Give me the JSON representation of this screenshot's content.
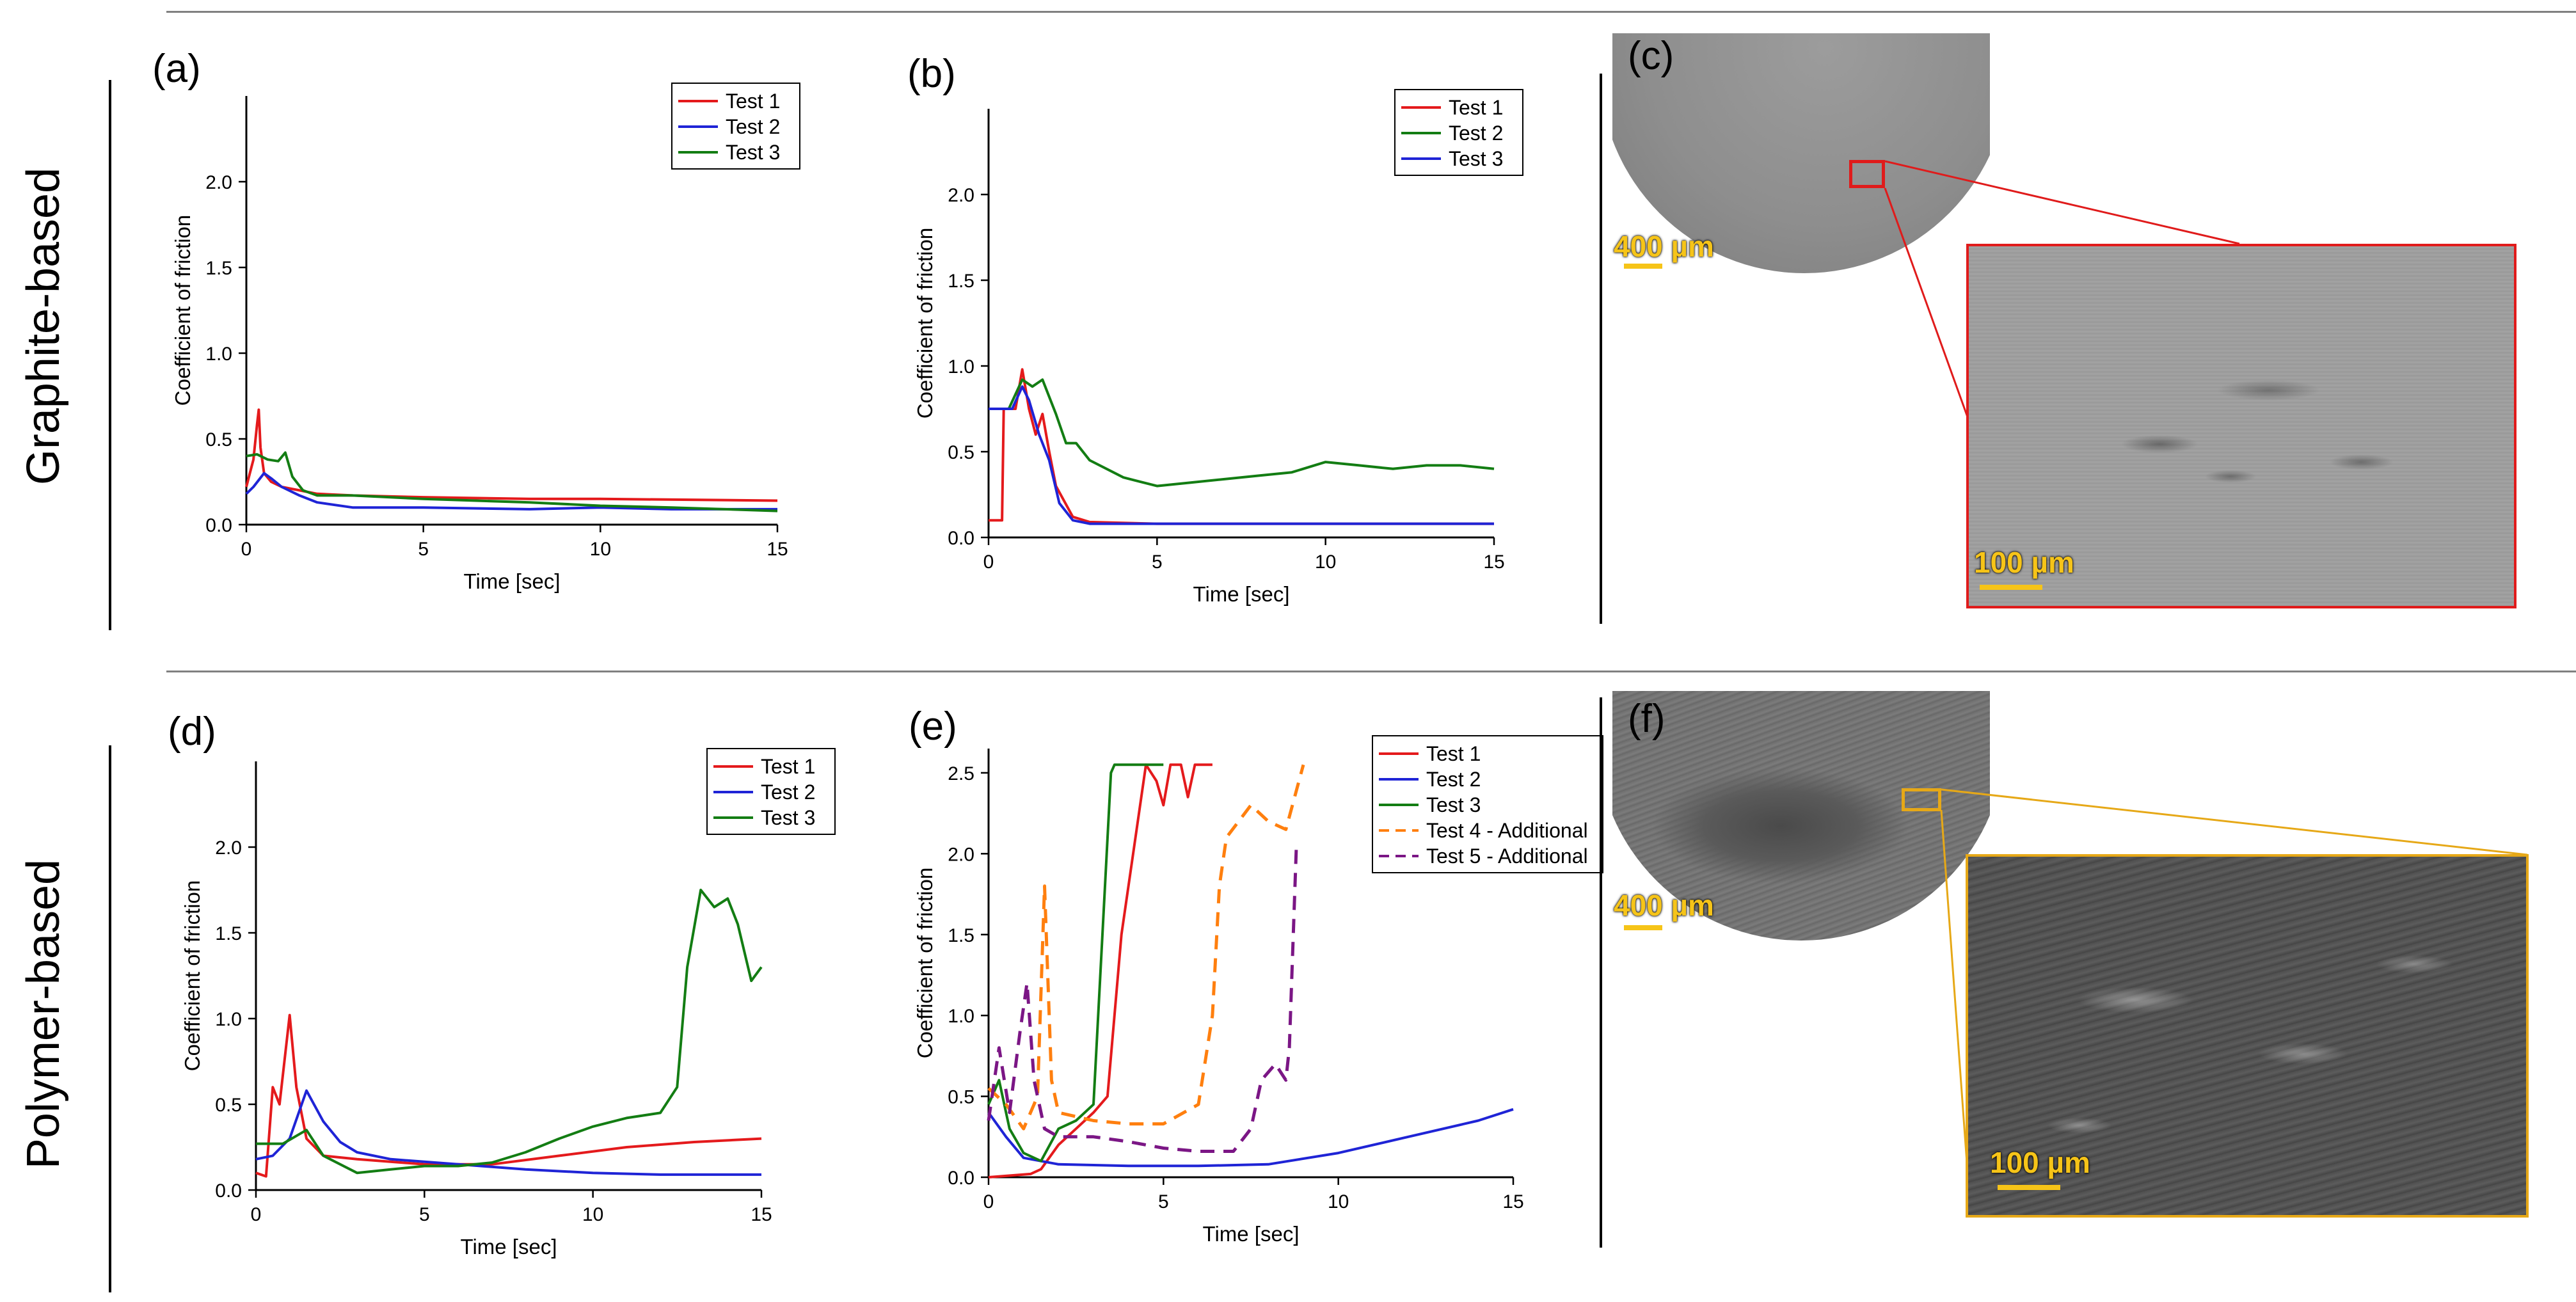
{
  "rows": [
    {
      "label": "Graphite-based"
    },
    {
      "label": "Polymer-based"
    }
  ],
  "panels": {
    "a": {
      "label": "(a)"
    },
    "b": {
      "label": "(b)"
    },
    "c": {
      "label": "(c)",
      "scale_overview": "400 µm",
      "scale_zoom": "100 µm",
      "box_color": "#e01b1b"
    },
    "d": {
      "label": "(d)"
    },
    "e": {
      "label": "(e)"
    },
    "f": {
      "label": "(f)",
      "scale_overview": "400 µm",
      "scale_zoom": "100 µm",
      "box_color": "#e6a817"
    }
  },
  "chart_data": [
    {
      "id": "a",
      "type": "line",
      "xlabel": "Time [sec]",
      "ylabel": "Coefficient of friction",
      "xlim": [
        0,
        15
      ],
      "ylim": [
        0,
        2.5
      ],
      "xticks": [
        "0",
        "5",
        "10",
        "15"
      ],
      "yticks": [
        "0.0",
        "0.5",
        "1.0",
        "1.5",
        "2.0"
      ],
      "legend_position": "top-right",
      "series": [
        {
          "name": "Test 1",
          "color": "#e41a1c",
          "dash": false,
          "points": [
            [
              0,
              0.22
            ],
            [
              0.1,
              0.3
            ],
            [
              0.2,
              0.38
            ],
            [
              0.3,
              0.58
            ],
            [
              0.35,
              0.67
            ],
            [
              0.4,
              0.45
            ],
            [
              0.5,
              0.3
            ],
            [
              0.7,
              0.25
            ],
            [
              1,
              0.22
            ],
            [
              1.5,
              0.2
            ],
            [
              2,
              0.18
            ],
            [
              3,
              0.17
            ],
            [
              5,
              0.16
            ],
            [
              8,
              0.15
            ],
            [
              10,
              0.15
            ],
            [
              15,
              0.14
            ]
          ]
        },
        {
          "name": "Test 2",
          "color": "#1f24d6",
          "dash": false,
          "points": [
            [
              0,
              0.18
            ],
            [
              0.2,
              0.22
            ],
            [
              0.5,
              0.3
            ],
            [
              0.7,
              0.27
            ],
            [
              1,
              0.22
            ],
            [
              1.5,
              0.17
            ],
            [
              2,
              0.13
            ],
            [
              3,
              0.1
            ],
            [
              5,
              0.1
            ],
            [
              8,
              0.09
            ],
            [
              10,
              0.1
            ],
            [
              12,
              0.09
            ],
            [
              15,
              0.09
            ]
          ]
        },
        {
          "name": "Test 3",
          "color": "#137d13",
          "dash": false,
          "points": [
            [
              0,
              0.4
            ],
            [
              0.3,
              0.41
            ],
            [
              0.6,
              0.38
            ],
            [
              0.9,
              0.37
            ],
            [
              1.1,
              0.42
            ],
            [
              1.3,
              0.28
            ],
            [
              1.6,
              0.2
            ],
            [
              2,
              0.17
            ],
            [
              3,
              0.17
            ],
            [
              5,
              0.15
            ],
            [
              8,
              0.13
            ],
            [
              10,
              0.11
            ],
            [
              12,
              0.1
            ],
            [
              15,
              0.08
            ]
          ]
        }
      ]
    },
    {
      "id": "b",
      "type": "line",
      "xlabel": "Time [sec]",
      "ylabel": "Coefficient of friction",
      "xlim": [
        0,
        15
      ],
      "ylim": [
        0,
        2.5
      ],
      "xticks": [
        "0",
        "5",
        "10",
        "15"
      ],
      "yticks": [
        "0.0",
        "0.5",
        "1.0",
        "1.5",
        "2.0"
      ],
      "legend_position": "top-right",
      "series": [
        {
          "name": "Test 1",
          "color": "#e41a1c",
          "dash": false,
          "points": [
            [
              0,
              0.1
            ],
            [
              0.4,
              0.1
            ],
            [
              0.45,
              0.75
            ],
            [
              0.8,
              0.75
            ],
            [
              1.0,
              0.98
            ],
            [
              1.2,
              0.75
            ],
            [
              1.4,
              0.6
            ],
            [
              1.6,
              0.72
            ],
            [
              1.8,
              0.5
            ],
            [
              2,
              0.3
            ],
            [
              2.5,
              0.12
            ],
            [
              3,
              0.09
            ],
            [
              5,
              0.08
            ],
            [
              10,
              0.08
            ],
            [
              15,
              0.08
            ]
          ]
        },
        {
          "name": "Test 2",
          "color": "#137d13",
          "dash": false,
          "points": [
            [
              0,
              0.75
            ],
            [
              0.6,
              0.75
            ],
            [
              1,
              0.92
            ],
            [
              1.3,
              0.88
            ],
            [
              1.6,
              0.92
            ],
            [
              2,
              0.72
            ],
            [
              2.3,
              0.55
            ],
            [
              2.6,
              0.55
            ],
            [
              3,
              0.45
            ],
            [
              4,
              0.35
            ],
            [
              5,
              0.3
            ],
            [
              6,
              0.32
            ],
            [
              7,
              0.34
            ],
            [
              8,
              0.36
            ],
            [
              9,
              0.38
            ],
            [
              10,
              0.44
            ],
            [
              11,
              0.42
            ],
            [
              12,
              0.4
            ],
            [
              13,
              0.42
            ],
            [
              14,
              0.42
            ],
            [
              15,
              0.4
            ]
          ]
        },
        {
          "name": "Test 3",
          "color": "#1f24d6",
          "dash": false,
          "points": [
            [
              0,
              0.75
            ],
            [
              0.7,
              0.75
            ],
            [
              1.0,
              0.88
            ],
            [
              1.2,
              0.8
            ],
            [
              1.5,
              0.6
            ],
            [
              1.8,
              0.45
            ],
            [
              2.1,
              0.2
            ],
            [
              2.5,
              0.1
            ],
            [
              3,
              0.08
            ],
            [
              5,
              0.08
            ],
            [
              10,
              0.08
            ],
            [
              15,
              0.08
            ]
          ]
        }
      ]
    },
    {
      "id": "d",
      "type": "line",
      "xlabel": "Time [sec]",
      "ylabel": "Coefficient of friction",
      "xlim": [
        0,
        15
      ],
      "ylim": [
        0,
        2.5
      ],
      "xticks": [
        "0",
        "5",
        "10",
        "15"
      ],
      "yticks": [
        "0.0",
        "0.5",
        "1.0",
        "1.5",
        "2.0"
      ],
      "legend_position": "top-right",
      "series": [
        {
          "name": "Test 1",
          "color": "#e41a1c",
          "dash": false,
          "points": [
            [
              0,
              0.1
            ],
            [
              0.3,
              0.08
            ],
            [
              0.5,
              0.6
            ],
            [
              0.7,
              0.5
            ],
            [
              1.0,
              1.02
            ],
            [
              1.2,
              0.6
            ],
            [
              1.5,
              0.3
            ],
            [
              2,
              0.2
            ],
            [
              3,
              0.18
            ],
            [
              5,
              0.15
            ],
            [
              7,
              0.15
            ],
            [
              9,
              0.2
            ],
            [
              11,
              0.25
            ],
            [
              13,
              0.28
            ],
            [
              15,
              0.3
            ]
          ]
        },
        {
          "name": "Test 2",
          "color": "#1f24d6",
          "dash": false,
          "points": [
            [
              0,
              0.18
            ],
            [
              0.5,
              0.2
            ],
            [
              1,
              0.3
            ],
            [
              1.5,
              0.58
            ],
            [
              2,
              0.4
            ],
            [
              2.5,
              0.28
            ],
            [
              3,
              0.22
            ],
            [
              4,
              0.18
            ],
            [
              6,
              0.15
            ],
            [
              8,
              0.12
            ],
            [
              10,
              0.1
            ],
            [
              12,
              0.09
            ],
            [
              15,
              0.09
            ]
          ]
        },
        {
          "name": "Test 3",
          "color": "#137d13",
          "dash": false,
          "points": [
            [
              0,
              0.27
            ],
            [
              0.8,
              0.27
            ],
            [
              1.5,
              0.35
            ],
            [
              2,
              0.2
            ],
            [
              3,
              0.1
            ],
            [
              4,
              0.12
            ],
            [
              5,
              0.14
            ],
            [
              6,
              0.14
            ],
            [
              7,
              0.16
            ],
            [
              8,
              0.22
            ],
            [
              9,
              0.3
            ],
            [
              10,
              0.37
            ],
            [
              11,
              0.42
            ],
            [
              12,
              0.45
            ],
            [
              12.5,
              0.6
            ],
            [
              12.8,
              1.3
            ],
            [
              13.2,
              1.75
            ],
            [
              13.6,
              1.65
            ],
            [
              14,
              1.7
            ],
            [
              14.3,
              1.55
            ],
            [
              14.7,
              1.22
            ],
            [
              15,
              1.3
            ]
          ]
        }
      ]
    },
    {
      "id": "e",
      "type": "line",
      "xlabel": "Time [sec]",
      "ylabel": "Coefficient of friction",
      "xlim": [
        0,
        15
      ],
      "ylim": [
        0,
        2.65
      ],
      "xticks": [
        "0",
        "5",
        "10",
        "15"
      ],
      "yticks": [
        "0.0",
        "0.5",
        "1.0",
        "1.5",
        "2.0",
        "2.5"
      ],
      "legend_position": "top-right",
      "series": [
        {
          "name": "Test 1",
          "color": "#e41a1c",
          "dash": false,
          "points": [
            [
              0,
              0
            ],
            [
              1.2,
              0.02
            ],
            [
              1.5,
              0.05
            ],
            [
              2,
              0.2
            ],
            [
              2.5,
              0.3
            ],
            [
              3,
              0.4
            ],
            [
              3.4,
              0.5
            ],
            [
              3.8,
              1.5
            ],
            [
              4.2,
              2.1
            ],
            [
              4.5,
              2.55
            ],
            [
              4.8,
              2.45
            ],
            [
              5,
              2.3
            ],
            [
              5.2,
              2.55
            ],
            [
              5.5,
              2.55
            ],
            [
              5.7,
              2.35
            ],
            [
              5.9,
              2.55
            ],
            [
              6,
              2.55
            ],
            [
              6.4,
              2.55
            ]
          ]
        },
        {
          "name": "Test 2",
          "color": "#1f24d6",
          "dash": false,
          "points": [
            [
              0,
              0.4
            ],
            [
              0.5,
              0.25
            ],
            [
              1,
              0.12
            ],
            [
              2,
              0.08
            ],
            [
              4,
              0.07
            ],
            [
              6,
              0.07
            ],
            [
              8,
              0.08
            ],
            [
              10,
              0.15
            ],
            [
              12,
              0.25
            ],
            [
              14,
              0.35
            ],
            [
              15,
              0.42
            ]
          ]
        },
        {
          "name": "Test 3",
          "color": "#137d13",
          "dash": false,
          "points": [
            [
              0,
              0.45
            ],
            [
              0.3,
              0.6
            ],
            [
              0.6,
              0.3
            ],
            [
              1,
              0.15
            ],
            [
              1.5,
              0.1
            ],
            [
              2,
              0.3
            ],
            [
              2.5,
              0.35
            ],
            [
              3,
              0.45
            ],
            [
              3.5,
              2.5
            ],
            [
              3.6,
              2.55
            ],
            [
              4.5,
              2.55
            ],
            [
              5,
              2.55
            ]
          ]
        },
        {
          "name": "Test 4 - Additional",
          "color": "#ff7f0e",
          "dash": true,
          "points": [
            [
              0,
              0.55
            ],
            [
              0.5,
              0.45
            ],
            [
              1,
              0.3
            ],
            [
              1.4,
              0.5
            ],
            [
              1.6,
              1.8
            ],
            [
              1.8,
              0.6
            ],
            [
              2,
              0.4
            ],
            [
              3,
              0.35
            ],
            [
              4,
              0.33
            ],
            [
              5,
              0.33
            ],
            [
              6,
              0.45
            ],
            [
              6.4,
              1.0
            ],
            [
              6.6,
              1.8
            ],
            [
              6.8,
              2.1
            ],
            [
              7.5,
              2.3
            ],
            [
              8,
              2.2
            ],
            [
              8.5,
              2.15
            ],
            [
              9,
              2.55
            ]
          ]
        },
        {
          "name": "Test 5 - Additional",
          "color": "#7b1685",
          "dash": true,
          "points": [
            [
              0,
              0.35
            ],
            [
              0.3,
              0.8
            ],
            [
              0.6,
              0.4
            ],
            [
              0.9,
              0.9
            ],
            [
              1.1,
              1.2
            ],
            [
              1.3,
              0.6
            ],
            [
              1.6,
              0.3
            ],
            [
              2,
              0.25
            ],
            [
              3,
              0.25
            ],
            [
              4,
              0.22
            ],
            [
              5,
              0.18
            ],
            [
              6,
              0.16
            ],
            [
              7,
              0.16
            ],
            [
              7.5,
              0.3
            ],
            [
              7.8,
              0.6
            ],
            [
              8.2,
              0.7
            ],
            [
              8.5,
              0.6
            ],
            [
              8.6,
              0.8
            ],
            [
              8.8,
              2.05
            ]
          ]
        }
      ]
    }
  ]
}
